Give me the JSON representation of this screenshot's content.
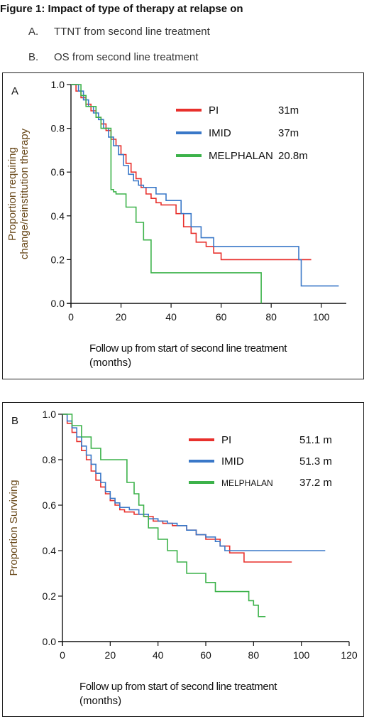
{
  "figure": {
    "title": "Figure 1: Impact of type of therapy at relapse on",
    "subtitles": [
      {
        "label": "A.",
        "text": "TTNT from second line treatment"
      },
      {
        "label": "B.",
        "text": "OS from second line treatment"
      }
    ]
  },
  "chart_data": [
    {
      "type": "line",
      "panel_label": "A",
      "xlabel": "Follow up from start of second line treatment",
      "xlabel2": "(months)",
      "ylabel": "Proportion requiring",
      "ylabel2": "change/reinstitution therapy",
      "xlim": [
        0,
        110
      ],
      "ylim": [
        0,
        1.0
      ],
      "xticks": [
        0,
        20,
        40,
        60,
        80,
        100
      ],
      "yticks": [
        "0.0",
        "0.2",
        "0.4",
        "0.6",
        "0.8",
        "1.0"
      ],
      "legend_position": "top-right",
      "series": [
        {
          "name": "PI",
          "median": "31m",
          "color": "#e8302c",
          "steps": [
            [
              0,
              1.0
            ],
            [
              2,
              0.97
            ],
            [
              4,
              0.94
            ],
            [
              6,
              0.91
            ],
            [
              8,
              0.88
            ],
            [
              10,
              0.85
            ],
            [
              12,
              0.82
            ],
            [
              14,
              0.79
            ],
            [
              16,
              0.75
            ],
            [
              18,
              0.72
            ],
            [
              20,
              0.68
            ],
            [
              22,
              0.64
            ],
            [
              24,
              0.6
            ],
            [
              26,
              0.57
            ],
            [
              28,
              0.53
            ],
            [
              30,
              0.5
            ],
            [
              32,
              0.48
            ],
            [
              34,
              0.46
            ],
            [
              36,
              0.45
            ],
            [
              42,
              0.41
            ],
            [
              45,
              0.35
            ],
            [
              48,
              0.32
            ],
            [
              50,
              0.28
            ],
            [
              54,
              0.26
            ],
            [
              57,
              0.23
            ],
            [
              60,
              0.2
            ],
            [
              96,
              0.2
            ]
          ]
        },
        {
          "name": "IMID",
          "median": "37m",
          "color": "#3a78c8",
          "steps": [
            [
              0,
              1.0
            ],
            [
              3,
              0.97
            ],
            [
              5,
              0.93
            ],
            [
              7,
              0.9
            ],
            [
              9,
              0.87
            ],
            [
              11,
              0.84
            ],
            [
              13,
              0.8
            ],
            [
              15,
              0.76
            ],
            [
              17,
              0.72
            ],
            [
              19,
              0.68
            ],
            [
              21,
              0.63
            ],
            [
              23,
              0.59
            ],
            [
              25,
              0.56
            ],
            [
              27,
              0.54
            ],
            [
              29,
              0.53
            ],
            [
              34,
              0.5
            ],
            [
              38,
              0.47
            ],
            [
              44,
              0.41
            ],
            [
              48,
              0.35
            ],
            [
              52,
              0.3
            ],
            [
              57,
              0.26
            ],
            [
              90,
              0.26
            ],
            [
              91,
              0.2
            ],
            [
              92,
              0.08
            ],
            [
              107,
              0.08
            ]
          ]
        },
        {
          "name": "MELPHALAN",
          "median": "20.8m",
          "color": "#3cb24a",
          "steps": [
            [
              0,
              1.0
            ],
            [
              4,
              0.95
            ],
            [
              6,
              0.9
            ],
            [
              10,
              0.85
            ],
            [
              12,
              0.8
            ],
            [
              16,
              0.52
            ],
            [
              17,
              0.51
            ],
            [
              18,
              0.5
            ],
            [
              20,
              0.5
            ],
            [
              22,
              0.44
            ],
            [
              26,
              0.37
            ],
            [
              29,
              0.29
            ],
            [
              32,
              0.14
            ],
            [
              75,
              0.14
            ],
            [
              76,
              0.0
            ]
          ]
        }
      ]
    },
    {
      "type": "line",
      "panel_label": "B",
      "xlabel": "Follow up from start of second line treatment",
      "xlabel2": "(months)",
      "ylabel": "Proportion Surviving",
      "ylabel2": "",
      "xlim": [
        0,
        120
      ],
      "ylim": [
        0,
        1.0
      ],
      "xticks": [
        0,
        20,
        40,
        60,
        80,
        100,
        120
      ],
      "yticks": [
        "0.0",
        "0.2",
        "0.4",
        "0.6",
        "0.8",
        "1.0"
      ],
      "legend_position": "top-right",
      "series": [
        {
          "name": "PI",
          "median": "51.1 m",
          "color": "#e8302c",
          "steps": [
            [
              0,
              1.0
            ],
            [
              2,
              0.96
            ],
            [
              4,
              0.92
            ],
            [
              6,
              0.88
            ],
            [
              8,
              0.84
            ],
            [
              10,
              0.8
            ],
            [
              12,
              0.75
            ],
            [
              14,
              0.71
            ],
            [
              16,
              0.68
            ],
            [
              18,
              0.65
            ],
            [
              20,
              0.62
            ],
            [
              22,
              0.6
            ],
            [
              24,
              0.58
            ],
            [
              26,
              0.57
            ],
            [
              30,
              0.56
            ],
            [
              34,
              0.55
            ],
            [
              38,
              0.53
            ],
            [
              42,
              0.52
            ],
            [
              46,
              0.51
            ],
            [
              52,
              0.49
            ],
            [
              56,
              0.47
            ],
            [
              60,
              0.45
            ],
            [
              66,
              0.42
            ],
            [
              70,
              0.39
            ],
            [
              76,
              0.35
            ],
            [
              96,
              0.35
            ]
          ]
        },
        {
          "name": "IMID",
          "median": "51.3 m",
          "color": "#3a78c8",
          "steps": [
            [
              0,
              1.0
            ],
            [
              2,
              0.97
            ],
            [
              4,
              0.94
            ],
            [
              6,
              0.9
            ],
            [
              8,
              0.86
            ],
            [
              10,
              0.82
            ],
            [
              12,
              0.78
            ],
            [
              14,
              0.74
            ],
            [
              16,
              0.7
            ],
            [
              18,
              0.66
            ],
            [
              20,
              0.63
            ],
            [
              22,
              0.61
            ],
            [
              24,
              0.59
            ],
            [
              28,
              0.58
            ],
            [
              32,
              0.56
            ],
            [
              36,
              0.54
            ],
            [
              40,
              0.53
            ],
            [
              44,
              0.52
            ],
            [
              48,
              0.51
            ],
            [
              52,
              0.49
            ],
            [
              56,
              0.47
            ],
            [
              60,
              0.46
            ],
            [
              64,
              0.44
            ],
            [
              66,
              0.42
            ],
            [
              68,
              0.4
            ],
            [
              110,
              0.4
            ]
          ]
        },
        {
          "name": "MELPHALAN",
          "median": "37.2 m",
          "color": "#3cb24a",
          "steps": [
            [
              0,
              1.0
            ],
            [
              4,
              0.95
            ],
            [
              8,
              0.9
            ],
            [
              12,
              0.85
            ],
            [
              16,
              0.8
            ],
            [
              27,
              0.7
            ],
            [
              30,
              0.65
            ],
            [
              32,
              0.6
            ],
            [
              34,
              0.55
            ],
            [
              36,
              0.5
            ],
            [
              40,
              0.45
            ],
            [
              44,
              0.4
            ],
            [
              48,
              0.35
            ],
            [
              52,
              0.3
            ],
            [
              60,
              0.26
            ],
            [
              64,
              0.22
            ],
            [
              78,
              0.18
            ],
            [
              80,
              0.16
            ],
            [
              82,
              0.11
            ],
            [
              85,
              0.11
            ]
          ]
        }
      ]
    }
  ]
}
